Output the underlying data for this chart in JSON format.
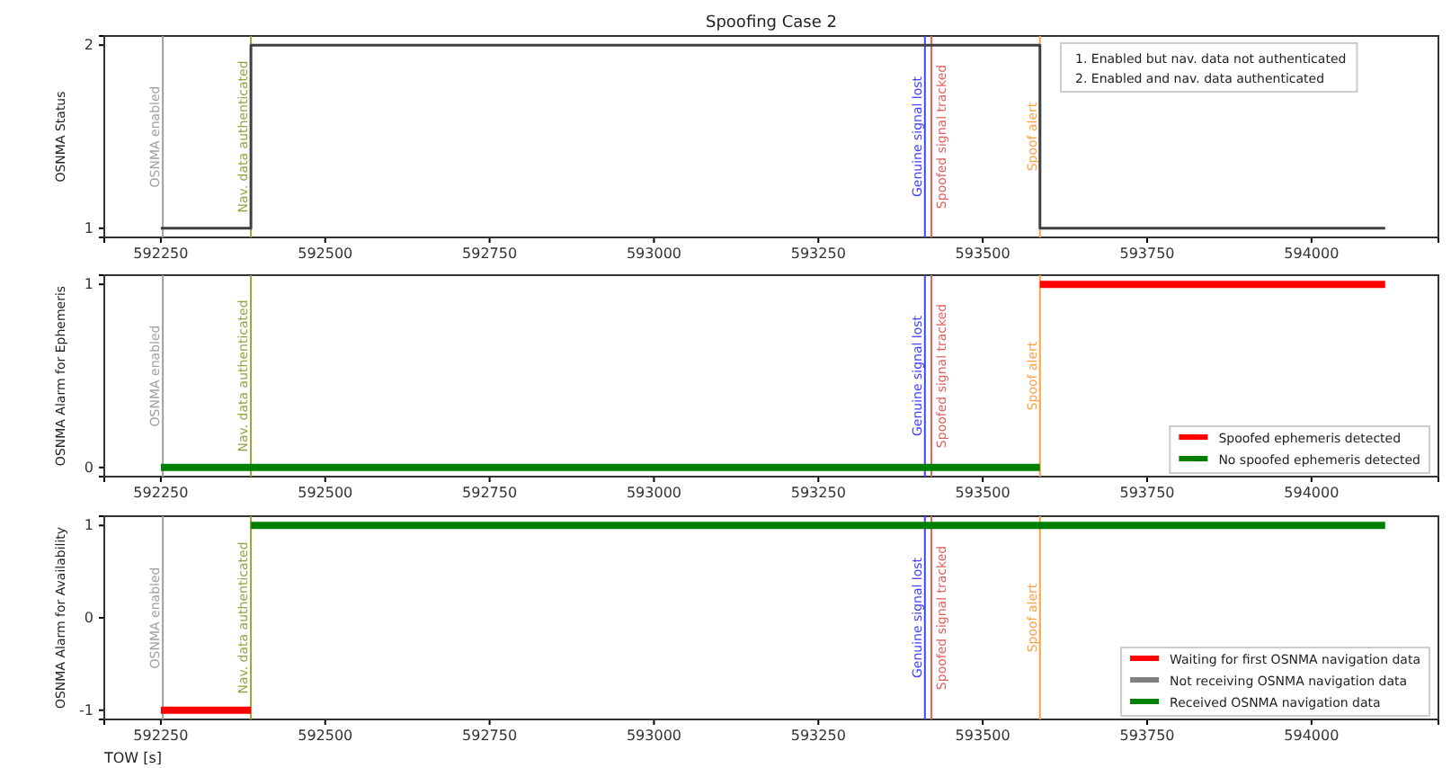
{
  "chart_data": [
    {
      "type": "step",
      "title": "Spoofing Case 2",
      "ylabel": "OSNMA Status",
      "xlim": [
        592164,
        594193
      ],
      "xticks": [
        592250,
        592500,
        592750,
        593000,
        593250,
        593500,
        593750,
        594000
      ],
      "ylim": [
        0.95,
        2.05
      ],
      "yticks": [
        1,
        2
      ],
      "grid": false,
      "legend": false,
      "annotations": [
        "1. Enabled but nav. data not authenticated",
        "2. Enabled and nav. data authenticated"
      ],
      "series": [
        {
          "color": "#404040",
          "x": [
            592250,
            592387,
            593587,
            594112
          ],
          "values": [
            1,
            2,
            1,
            1
          ]
        }
      ],
      "ref_lines": [
        {
          "axis": "x",
          "value": 592253,
          "label": "OSNMA enabled",
          "color": "#a0a0a0"
        },
        {
          "axis": "x",
          "value": 592387,
          "label": "Nav. data authenticated",
          "color": "#9aa040"
        },
        {
          "axis": "x",
          "value": 593412,
          "label": "Genuine signal lost",
          "color": "#4040ff"
        },
        {
          "axis": "x",
          "value": 593422,
          "label": "Spoofed signal tracked",
          "color": "#e06060"
        },
        {
          "axis": "x",
          "value": 593587,
          "label": "Spoof alert",
          "color": "#ffa040"
        }
      ]
    },
    {
      "type": "step",
      "ylabel": "OSNMA Alarm for Ephemeris",
      "xlim": [
        592164,
        594193
      ],
      "xticks": [
        592250,
        592500,
        592750,
        593000,
        593250,
        593500,
        593750,
        594000
      ],
      "ylim": [
        -0.05,
        1.05
      ],
      "yticks": [
        0,
        1
      ],
      "grid": false,
      "legend": "bottom right",
      "series": [
        {
          "name": "Spoofed ephemeris detected",
          "color": "#ff0000",
          "x": [
            593587,
            594112
          ],
          "values": [
            1,
            1
          ]
        },
        {
          "name": "No spoofed ephemeris detected",
          "color": "#008000",
          "x": [
            592250,
            593587
          ],
          "values": [
            0,
            0
          ]
        }
      ],
      "ref_lines": [
        {
          "axis": "x",
          "value": 592253,
          "label": "OSNMA enabled",
          "color": "#a0a0a0"
        },
        {
          "axis": "x",
          "value": 592387,
          "label": "Nav. data authenticated",
          "color": "#9aa040"
        },
        {
          "axis": "x",
          "value": 593412,
          "label": "Genuine signal lost",
          "color": "#4040ff"
        },
        {
          "axis": "x",
          "value": 593422,
          "label": "Spoofed signal tracked",
          "color": "#e06060"
        },
        {
          "axis": "x",
          "value": 593587,
          "label": "Spoof alert",
          "color": "#ffa040"
        }
      ]
    },
    {
      "type": "step",
      "ylabel": "OSNMA Alarm for Availability",
      "xlabel": "TOW [s]",
      "xlim": [
        592164,
        594193
      ],
      "xticks": [
        592250,
        592500,
        592750,
        593000,
        593250,
        593500,
        593750,
        594000
      ],
      "ylim": [
        -1.1,
        1.1
      ],
      "yticks": [
        -1,
        0,
        1
      ],
      "grid": false,
      "legend": "bottom right",
      "series": [
        {
          "name": "Waiting for first OSNMA navigation data",
          "color": "#ff0000",
          "x": [
            592250,
            592387
          ],
          "values": [
            -1,
            -1
          ]
        },
        {
          "name": "Not receiving OSNMA navigation data",
          "color": "#808080"
        },
        {
          "name": "Received OSNMA navigation data",
          "color": "#008000",
          "x": [
            592387,
            594112
          ],
          "values": [
            1,
            1
          ]
        }
      ],
      "ref_lines": [
        {
          "axis": "x",
          "value": 592253,
          "label": "OSNMA enabled",
          "color": "#a0a0a0"
        },
        {
          "axis": "x",
          "value": 592387,
          "label": "Nav. data authenticated",
          "color": "#9aa040"
        },
        {
          "axis": "x",
          "value": 593412,
          "label": "Genuine signal lost",
          "color": "#4040ff"
        },
        {
          "axis": "x",
          "value": 593422,
          "label": "Spoofed signal tracked",
          "color": "#e06060"
        },
        {
          "axis": "x",
          "value": 593587,
          "label": "Spoof alert",
          "color": "#ffa040"
        }
      ]
    }
  ]
}
